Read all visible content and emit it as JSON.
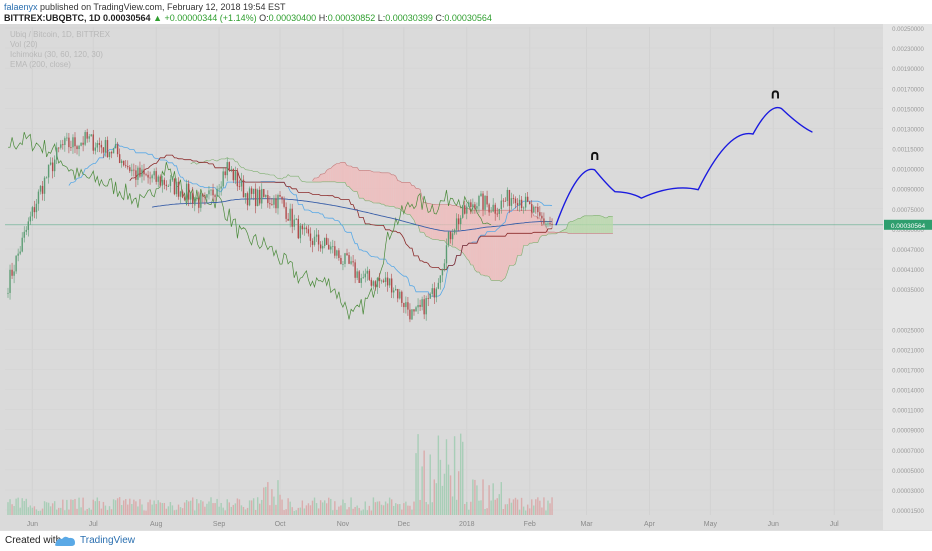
{
  "header": {
    "user": "falaenyx",
    "published_text": "published on TradingView.com, February 12, 2018 19:54 EST",
    "symbol": "BITTREX:UBQBTC, 1D",
    "last": "0.00030564",
    "change": "▲ +0.00000344 (+1.14%)",
    "open_label": "O:",
    "open": "0.00030400",
    "high_label": "H:",
    "high": "0.00030852",
    "low_label": "L:",
    "low": "0.00030399",
    "close_label": "C:",
    "close": "0.00030564"
  },
  "legend": {
    "pair": "Ubiq / Bitcoin, 1D, BITTREX",
    "vol": "Vol (20)",
    "ichimoku": "Ichimoku (30, 60, 120, 30)",
    "ema": "EMA (200, close)"
  },
  "footer": {
    "created_with": "Created with",
    "brand": "TradingView"
  },
  "colors": {
    "chart_bg": "#dadada",
    "up": "#5b9c73",
    "down": "#b04a4a",
    "cloud_bear": "#f2b8b8",
    "cloud_bull": "#b5d8a6",
    "tenkan": "#5aa9e6",
    "kijun": "#8b2a2a",
    "chikou": "#4a8a3a",
    "ema": "#3a5fa8",
    "drawing": "#1a1adf",
    "current_price_tag": "#2e9e6e"
  },
  "chart_data": {
    "type": "candlestick",
    "title": "Ubiq / Bitcoin, 1D, BITTREX",
    "x_tick_labels": [
      "Jun",
      "Jul",
      "Aug",
      "Sep",
      "Oct",
      "Nov",
      "Dec",
      "2018",
      "Feb",
      "Mar",
      "Apr",
      "May",
      "Jun",
      "Jul"
    ],
    "y_tick_labels": [
      "0.00250000",
      "0.00230000",
      "0.00190000",
      "0.00170000",
      "0.00150000",
      "0.00130000",
      "0.00115000",
      "0.00100000",
      "0.00090000",
      "0.00075000",
      "0.00060000",
      "0.00047000",
      "0.00041000",
      "0.00035000",
      "0.00030564",
      "0.00025000",
      "0.00021000",
      "0.00017000",
      "0.00014000",
      "0.00011000",
      "0.00009000",
      "0.00007000",
      "0.00005000",
      "0.00003000",
      "0.00001500"
    ],
    "ylim": [
      1.25e-05,
      0.0027
    ],
    "y_scale": "log",
    "current_price": 0.00030564,
    "price_anchors": [
      {
        "date": "2017-05-20",
        "close": 0.00016
      },
      {
        "date": "2017-06-05",
        "close": 0.00045
      },
      {
        "date": "2017-06-15",
        "close": 0.00072
      },
      {
        "date": "2017-06-28",
        "close": 0.00078
      },
      {
        "date": "2017-07-12",
        "close": 0.00068
      },
      {
        "date": "2017-07-22",
        "close": 0.00053
      },
      {
        "date": "2017-08-05",
        "close": 0.00049
      },
      {
        "date": "2017-08-15",
        "close": 0.00044
      },
      {
        "date": "2017-08-25",
        "close": 0.00038
      },
      {
        "date": "2017-09-05",
        "close": 0.00058
      },
      {
        "date": "2017-09-15",
        "close": 0.00042
      },
      {
        "date": "2017-10-01",
        "close": 0.0004
      },
      {
        "date": "2017-10-12",
        "close": 0.00027
      },
      {
        "date": "2017-10-25",
        "close": 0.00024
      },
      {
        "date": "2017-11-10",
        "close": 0.00017
      },
      {
        "date": "2017-11-25",
        "close": 0.00016
      },
      {
        "date": "2017-12-06",
        "close": 0.00011
      },
      {
        "date": "2017-12-15",
        "close": 0.00014
      },
      {
        "date": "2017-12-25",
        "close": 0.0003
      },
      {
        "date": "2018-01-05",
        "close": 0.0004
      },
      {
        "date": "2018-01-15",
        "close": 0.00037
      },
      {
        "date": "2018-01-25",
        "close": 0.00043
      },
      {
        "date": "2018-02-05",
        "close": 0.00033
      },
      {
        "date": "2018-02-12",
        "close": 0.00030564
      }
    ],
    "projection_drawing": [
      {
        "date": "2018-02-14",
        "price": 0.000306
      },
      {
        "date": "2018-03-05",
        "price": 0.00056
      },
      {
        "date": "2018-03-15",
        "price": 0.00044
      },
      {
        "date": "2018-03-28",
        "price": 0.00041
      },
      {
        "date": "2018-04-25",
        "price": 0.00045
      },
      {
        "date": "2018-05-22",
        "price": 0.00083
      },
      {
        "date": "2018-06-05",
        "price": 0.0011
      },
      {
        "date": "2018-06-20",
        "price": 0.00085
      }
    ],
    "markers": [
      {
        "label": "∩",
        "date": "2018-03-05"
      },
      {
        "label": "∩",
        "date": "2018-06-02"
      }
    ]
  }
}
